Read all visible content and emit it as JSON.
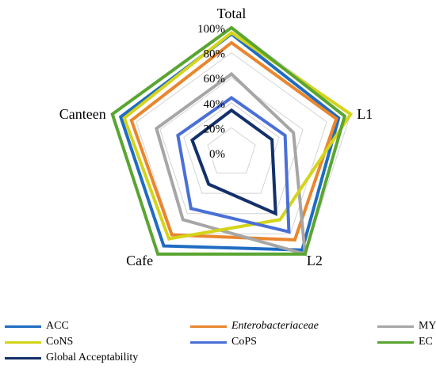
{
  "chart_data": {
    "type": "radar",
    "axes": [
      "Total",
      "L1",
      "L2",
      "Cafe",
      "Canteen"
    ],
    "ticks": [
      "0%",
      "20%",
      "40%",
      "60%",
      "80%",
      "100%"
    ],
    "range": [
      0,
      100
    ],
    "grid": true,
    "legend_position": "bottom",
    "series": [
      {
        "name": "ACC",
        "color": "#1f6cc2",
        "values": [
          95,
          90,
          96,
          92,
          93
        ]
      },
      {
        "name": "Enterobacteriaceae",
        "italic": true,
        "color": "#e9862e",
        "values": [
          88,
          88,
          86,
          81,
          84
        ]
      },
      {
        "name": "MY",
        "color": "#a6a6a6",
        "values": [
          63,
          52,
          100,
          66,
          63
        ]
      },
      {
        "name": "CoNS",
        "color": "#d4d41a",
        "values": [
          96,
          100,
          66,
          85,
          90
        ]
      },
      {
        "name": "CoPS",
        "color": "#4a6fd6",
        "values": [
          44,
          45,
          78,
          55,
          45
        ]
      },
      {
        "name": "EC",
        "color": "#5aa532",
        "values": [
          100,
          95,
          100,
          100,
          100
        ]
      },
      {
        "name": "Global Acceptability",
        "color": "#13306b",
        "values": [
          34,
          34,
          60,
          31,
          33
        ]
      }
    ]
  }
}
